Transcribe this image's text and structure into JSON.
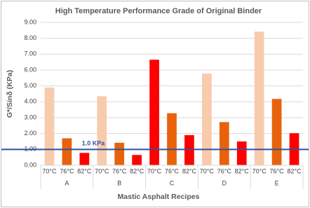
{
  "chart_data": {
    "type": "bar",
    "title": "High Temperature Performance Grade of Original Binder",
    "xlabel": "Mastic Asphalt Recipes",
    "ylabel": "G*/Sinδ (KPa)",
    "groups": [
      {
        "name": "A",
        "categories": [
          "70°C",
          "76°C",
          "82°C"
        ],
        "values": [
          4.9,
          1.7,
          0.78
        ],
        "colors": [
          "#f8cbad",
          "#e8620c",
          "#ff0000"
        ]
      },
      {
        "name": "B",
        "categories": [
          "70°C",
          "76°C",
          "82°C"
        ],
        "values": [
          4.35,
          1.42,
          0.65
        ],
        "colors": [
          "#f8cbad",
          "#e8620c",
          "#ff0000"
        ]
      },
      {
        "name": "C",
        "categories": [
          "70°C",
          "76°C",
          "82°C"
        ],
        "values": [
          6.65,
          3.28,
          1.9
        ],
        "colors": [
          "#ff0000",
          "#e8620c",
          "#ff0000"
        ]
      },
      {
        "name": "D",
        "categories": [
          "70°C",
          "76°C",
          "82°C"
        ],
        "values": [
          5.78,
          2.72,
          1.5
        ],
        "colors": [
          "#f8cbad",
          "#e8620c",
          "#ff0000"
        ]
      },
      {
        "name": "E",
        "categories": [
          "70°C",
          "76°C",
          "82°C"
        ],
        "values": [
          8.42,
          4.18,
          2.02
        ],
        "colors": [
          "#f8cbad",
          "#e8620c",
          "#ff0000"
        ]
      }
    ],
    "ylim": [
      0,
      9
    ],
    "yticks": [
      {
        "value": 0,
        "label": "0.00"
      },
      {
        "value": 1,
        "label": "1.00"
      },
      {
        "value": 2,
        "label": "2.00"
      },
      {
        "value": 3,
        "label": "3.00"
      },
      {
        "value": 4,
        "label": "4.00"
      },
      {
        "value": 5,
        "label": "5.00"
      },
      {
        "value": 6,
        "label": "6.00"
      },
      {
        "value": 7,
        "label": "7.00"
      },
      {
        "value": 8,
        "label": "8.00"
      },
      {
        "value": 9,
        "label": "9.00"
      }
    ],
    "grid": true,
    "reference_line": {
      "value": 1,
      "label": "1.0 KPa",
      "color": "#2f52a0"
    }
  }
}
